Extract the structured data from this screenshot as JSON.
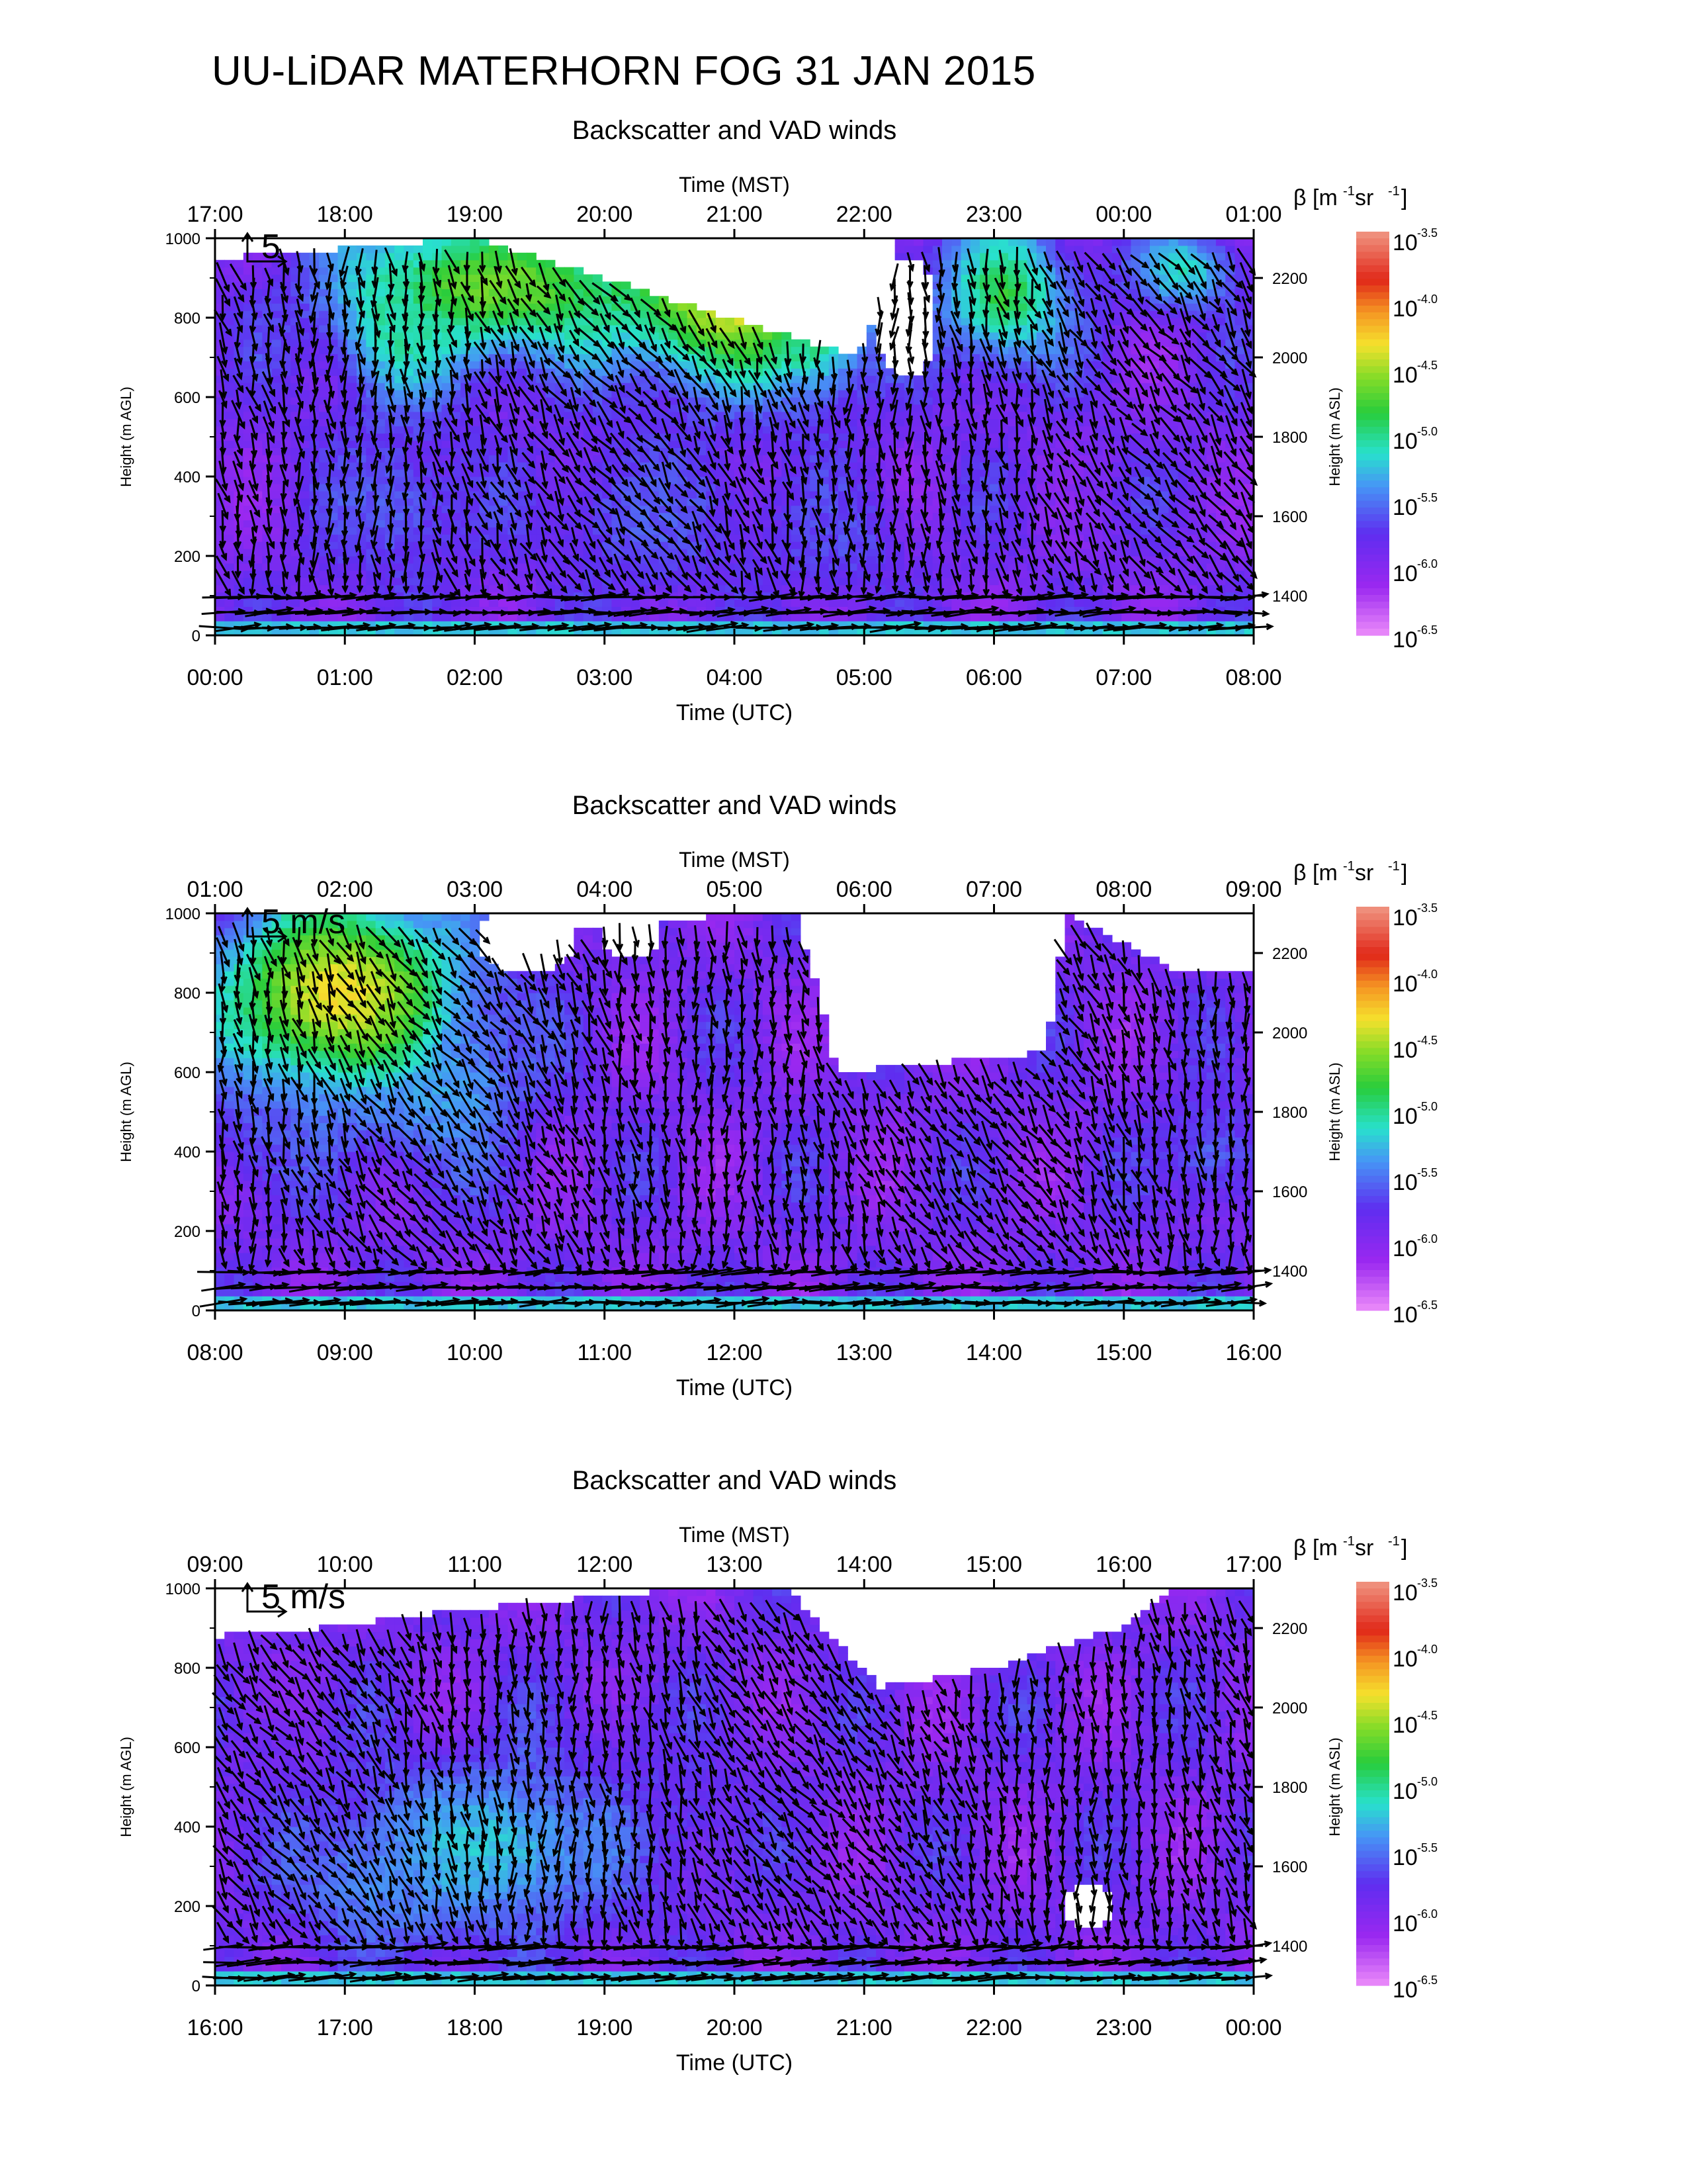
{
  "title": "UU-LiDAR MATERHORN FOG  31 JAN 2015",
  "chart_data": [
    {
      "type": "heatmap",
      "title": "Backscatter and VAD winds",
      "top_axis": {
        "label": "Time (MST)",
        "ticks": [
          "17:00",
          "18:00",
          "19:00",
          "20:00",
          "21:00",
          "22:00",
          "23:00",
          "00:00",
          "01:00"
        ]
      },
      "bottom_axis": {
        "label": "Time (UTC)",
        "ticks": [
          "00:00",
          "01:00",
          "02:00",
          "03:00",
          "04:00",
          "05:00",
          "06:00",
          "07:00",
          "08:00"
        ]
      },
      "left_axis": {
        "label": "Height (m AGL)",
        "ticks": [
          0,
          200,
          400,
          600,
          800,
          1000
        ],
        "range": [
          0,
          1000
        ]
      },
      "right_axis": {
        "label": "Height (m ASL)",
        "ticks": [
          1400,
          1600,
          1800,
          2000,
          2200
        ]
      },
      "colorbar": {
        "label_prefix": "β [m",
        "label_mid": " sr",
        "label_end": "]",
        "exp1": "-1",
        "exp2": "-1",
        "base": "10",
        "exponents": [
          "-3.5",
          "-4.0",
          "-4.5",
          "-5.0",
          "-5.5",
          "-6.0",
          "-6.5"
        ]
      },
      "reference_vector": {
        "label": "5",
        "speed_ms": 5
      },
      "seed": 11,
      "bands": [
        {
          "t": 0.0,
          "hi": 0.95,
          "hasData": 1
        },
        {
          "t": 0.25,
          "hi": 1.0,
          "hasData": 1
        },
        {
          "t": 0.62,
          "hi": 0.7,
          "hasData": 1
        },
        {
          "t": 0.66,
          "hi": 1.0,
          "hasData": 1
        },
        {
          "t": 1.0,
          "hi": 1.0,
          "hasData": 1
        }
      ],
      "blobs": [
        {
          "tc": 0.27,
          "hc": 0.88,
          "rt": 0.14,
          "rh": 0.18,
          "v": 0.62
        },
        {
          "tc": 0.18,
          "hc": 0.8,
          "rt": 0.06,
          "rh": 0.22,
          "v": 0.48
        },
        {
          "tc": 0.5,
          "hc": 0.86,
          "rt": 0.11,
          "rh": 0.22,
          "v": 0.72
        },
        {
          "tc": 0.58,
          "hc": 0.83,
          "rt": 0.04,
          "rh": 0.2,
          "v": 0.55
        },
        {
          "tc": 0.76,
          "hc": 0.86,
          "rt": 0.06,
          "rh": 0.18,
          "v": 0.55
        },
        {
          "tc": 0.93,
          "hc": 0.92,
          "rt": 0.05,
          "rh": 0.1,
          "v": 0.45
        },
        {
          "tc": 0.17,
          "hc": 0.32,
          "rt": 0.08,
          "rh": 0.2,
          "v": 0.3
        },
        {
          "tc": 0.42,
          "hc": 0.3,
          "rt": 0.1,
          "rh": 0.2,
          "v": 0.3
        },
        {
          "tc": 0.6,
          "hc": 0.25,
          "rt": 0.07,
          "rh": 0.15,
          "v": 0.28
        },
        {
          "tc": 0.88,
          "hc": 0.35,
          "rt": 0.08,
          "rh": 0.15,
          "v": 0.2
        }
      ],
      "holes": [
        {
          "tc": 0.665,
          "hc": 0.8,
          "rt": 0.03,
          "rh": 0.15
        }
      ]
    },
    {
      "type": "heatmap",
      "title": "Backscatter and VAD winds",
      "top_axis": {
        "label": "Time (MST)",
        "ticks": [
          "01:00",
          "02:00",
          "03:00",
          "04:00",
          "05:00",
          "06:00",
          "07:00",
          "08:00",
          "09:00"
        ]
      },
      "bottom_axis": {
        "label": "Time (UTC)",
        "ticks": [
          "08:00",
          "09:00",
          "10:00",
          "11:00",
          "12:00",
          "13:00",
          "14:00",
          "15:00",
          "16:00"
        ]
      },
      "left_axis": {
        "label": "Height (m AGL)",
        "ticks": [
          0,
          200,
          400,
          600,
          800,
          1000
        ],
        "range": [
          0,
          1000
        ]
      },
      "right_axis": {
        "label": "Height (m ASL)",
        "ticks": [
          1400,
          1600,
          1800,
          2000,
          2200
        ]
      },
      "colorbar": {
        "label_prefix": "β [m",
        "label_mid": " sr",
        "label_end": "]",
        "exp1": "-1",
        "exp2": "-1",
        "base": "10",
        "exponents": [
          "-3.5",
          "-4.0",
          "-4.5",
          "-5.0",
          "-5.5",
          "-6.0",
          "-6.5"
        ]
      },
      "reference_vector": {
        "label": "5 m/s",
        "speed_ms": 5
      },
      "seed": 23,
      "bands": [
        {
          "t": 0.0,
          "hi": 1.0,
          "hasData": 1
        },
        {
          "t": 0.26,
          "hi": 1.0,
          "hasData": 1
        },
        {
          "t": 0.28,
          "hi": 0.85,
          "hasData": 1
        },
        {
          "t": 0.33,
          "hi": 0.95,
          "hasData": 1
        },
        {
          "t": 0.5,
          "hi": 1.0,
          "hasData": 1
        },
        {
          "t": 0.56,
          "hi": 1.0,
          "hasData": 1
        },
        {
          "t": 0.6,
          "hi": 0.6,
          "hasData": 1
        },
        {
          "t": 0.8,
          "hi": 0.65,
          "hasData": 1
        },
        {
          "t": 0.82,
          "hi": 1.0,
          "hasData": 1
        },
        {
          "t": 0.93,
          "hi": 0.85,
          "hasData": 1
        },
        {
          "t": 1.0,
          "hi": 0.85,
          "hasData": 1
        }
      ],
      "blobs": [
        {
          "tc": 0.12,
          "hc": 0.8,
          "rt": 0.12,
          "rh": 0.25,
          "v": 0.72
        },
        {
          "tc": 0.05,
          "hc": 0.55,
          "rt": 0.06,
          "rh": 0.25,
          "v": 0.3
        },
        {
          "tc": 0.22,
          "hc": 0.55,
          "rt": 0.08,
          "rh": 0.2,
          "v": 0.38
        },
        {
          "tc": 0.96,
          "hc": 0.4,
          "rt": 0.05,
          "rh": 0.15,
          "v": 0.3
        },
        {
          "tc": 0.45,
          "hc": 0.25,
          "rt": 0.1,
          "rh": 0.1,
          "v": 0.12
        }
      ],
      "holes": [
        {
          "tc": 0.3,
          "hc": 0.93,
          "rt": 0.05,
          "rh": 0.08
        },
        {
          "tc": 0.4,
          "hc": 0.95,
          "rt": 0.03,
          "rh": 0.06
        }
      ]
    },
    {
      "type": "heatmap",
      "title": "Backscatter and VAD winds",
      "top_axis": {
        "label": "Time (MST)",
        "ticks": [
          "09:00",
          "10:00",
          "11:00",
          "12:00",
          "13:00",
          "14:00",
          "15:00",
          "16:00",
          "17:00"
        ]
      },
      "bottom_axis": {
        "label": "Time (UTC)",
        "ticks": [
          "16:00",
          "17:00",
          "18:00",
          "19:00",
          "20:00",
          "21:00",
          "22:00",
          "23:00",
          "00:00"
        ]
      },
      "left_axis": {
        "label": "Height (m AGL)",
        "ticks": [
          0,
          200,
          400,
          600,
          800,
          1000
        ],
        "range": [
          0,
          1000
        ]
      },
      "right_axis": {
        "label": "Height (m ASL)",
        "ticks": [
          1400,
          1600,
          1800,
          2000,
          2200
        ]
      },
      "colorbar": {
        "label_prefix": "β [m",
        "label_mid": " sr",
        "label_end": "]",
        "exp1": "-1",
        "exp2": "-1",
        "base": "10",
        "exponents": [
          "-3.5",
          "-4.0",
          "-4.5",
          "-5.0",
          "-5.5",
          "-6.0",
          "-6.5"
        ]
      },
      "reference_vector": {
        "label": "5 m/s",
        "speed_ms": 5
      },
      "seed": 37,
      "bands": [
        {
          "t": 0.0,
          "hi": 0.88,
          "hasData": 1
        },
        {
          "t": 0.1,
          "hi": 0.9,
          "hasData": 1
        },
        {
          "t": 0.25,
          "hi": 0.95,
          "hasData": 1
        },
        {
          "t": 0.45,
          "hi": 1.0,
          "hasData": 1
        },
        {
          "t": 0.55,
          "hi": 1.0,
          "hasData": 1
        },
        {
          "t": 0.64,
          "hi": 0.75,
          "hasData": 1
        },
        {
          "t": 0.75,
          "hi": 0.8,
          "hasData": 1
        },
        {
          "t": 0.87,
          "hi": 0.9,
          "hasData": 1
        },
        {
          "t": 0.92,
          "hi": 1.0,
          "hasData": 1
        },
        {
          "t": 1.0,
          "hi": 1.0,
          "hasData": 1
        }
      ],
      "blobs": [
        {
          "tc": 0.26,
          "hc": 0.35,
          "rt": 0.14,
          "rh": 0.22,
          "v": 0.42
        },
        {
          "tc": 0.16,
          "hc": 0.25,
          "rt": 0.08,
          "rh": 0.15,
          "v": 0.35
        },
        {
          "tc": 0.42,
          "hc": 0.45,
          "rt": 0.1,
          "rh": 0.25,
          "v": 0.25
        },
        {
          "tc": 0.05,
          "hc": 0.5,
          "rt": 0.05,
          "rh": 0.25,
          "v": 0.22
        }
      ],
      "holes": [
        {
          "tc": 0.84,
          "hc": 0.2,
          "rt": 0.025,
          "rh": 0.06
        }
      ]
    }
  ]
}
